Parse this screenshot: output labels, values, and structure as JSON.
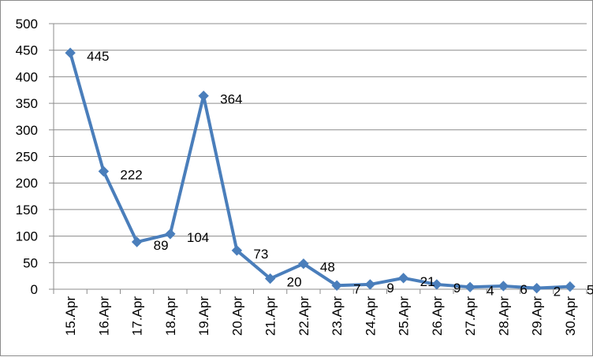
{
  "chart_data": {
    "type": "line",
    "title": "",
    "xlabel": "",
    "ylabel": "",
    "categories": [
      "15.Apr",
      "16.Apr",
      "17.Apr",
      "18.Apr",
      "19.Apr",
      "20.Apr",
      "21.Apr",
      "22.Apr",
      "23.Apr",
      "24.Apr",
      "25.Apr",
      "26.Apr",
      "27.Apr",
      "28.Apr",
      "29.Apr",
      "30.Apr"
    ],
    "series": [
      {
        "values": [
          445,
          222,
          89,
          104,
          364,
          73,
          20,
          48,
          7,
          9,
          21,
          9,
          4,
          6,
          2,
          5
        ],
        "color": "#4a7ebb",
        "marker": "diamond"
      }
    ],
    "data_labels": [
      "445",
      "222",
      "89",
      "104",
      "364",
      "73",
      "20",
      "48",
      "7",
      "9",
      "21",
      "9",
      "4",
      "6",
      "2",
      "5"
    ],
    "ylim": [
      0,
      500
    ],
    "yticks": [
      0,
      50,
      100,
      150,
      200,
      250,
      300,
      350,
      400,
      450,
      500
    ],
    "ytick_labels": [
      "0",
      "50",
      "100",
      "150",
      "200",
      "250",
      "300",
      "350",
      "400",
      "450",
      "500"
    ],
    "grid": true,
    "legend": "none"
  }
}
